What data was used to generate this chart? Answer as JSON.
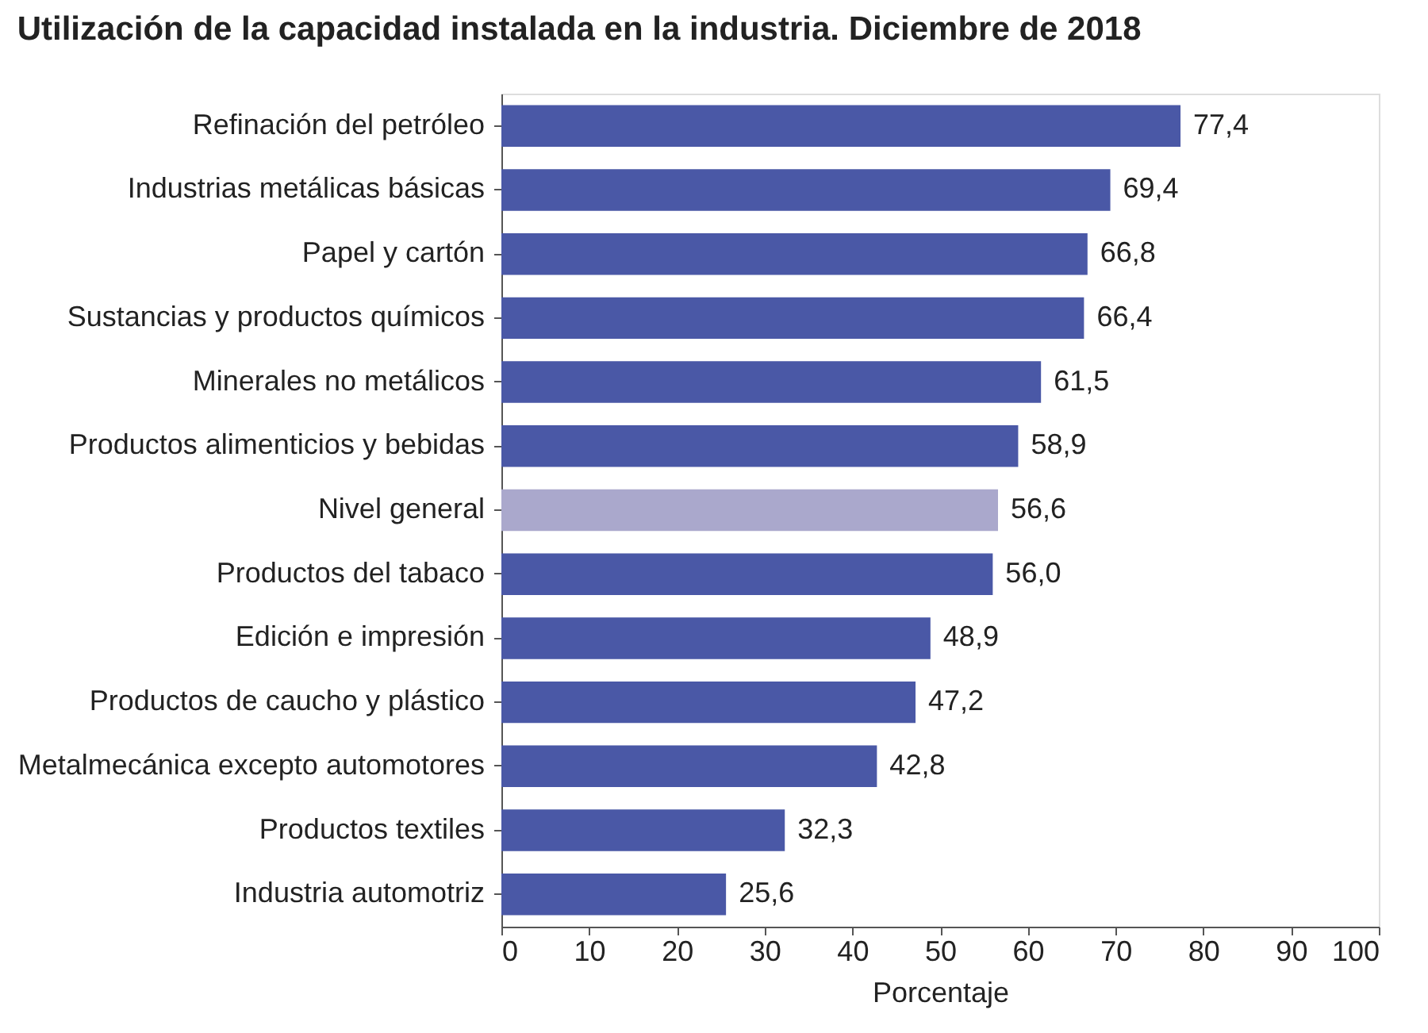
{
  "chart_data": {
    "type": "bar",
    "orientation": "horizontal",
    "title": "Utilización de la capacidad instalada en la industria. Diciembre de 2018",
    "xlabel": "Porcentaje",
    "categories": [
      "Refinación del petróleo",
      "Industrias metálicas básicas",
      "Papel y cartón",
      "Sustancias y productos químicos",
      "Minerales no metálicos",
      "Productos alimenticios y bebidas",
      "Nivel general",
      "Productos del tabaco",
      "Edición e impresión",
      "Productos de caucho y plástico",
      "Metalmecánica excepto automotores",
      "Productos textiles",
      "Industria automotriz"
    ],
    "values": [
      77.4,
      69.4,
      66.8,
      66.4,
      61.5,
      58.9,
      56.6,
      56.0,
      48.9,
      47.2,
      42.8,
      32.3,
      25.6
    ],
    "value_labels": [
      "77,4",
      "69,4",
      "66,8",
      "66,4",
      "61,5",
      "58,9",
      "56,6",
      "56,0",
      "48,9",
      "47,2",
      "42,8",
      "32,3",
      "25,6"
    ],
    "colors": [
      "#4a58a6",
      "#4a58a6",
      "#4a58a6",
      "#4a58a6",
      "#4a58a6",
      "#4a58a6",
      "#aaa8cc",
      "#4a58a6",
      "#4a58a6",
      "#4a58a6",
      "#4a58a6",
      "#4a58a6",
      "#4a58a6"
    ],
    "xlim": [
      0,
      100
    ],
    "xticks": [
      0,
      10,
      20,
      30,
      40,
      50,
      60,
      70,
      80,
      90,
      100
    ],
    "grid": false
  }
}
